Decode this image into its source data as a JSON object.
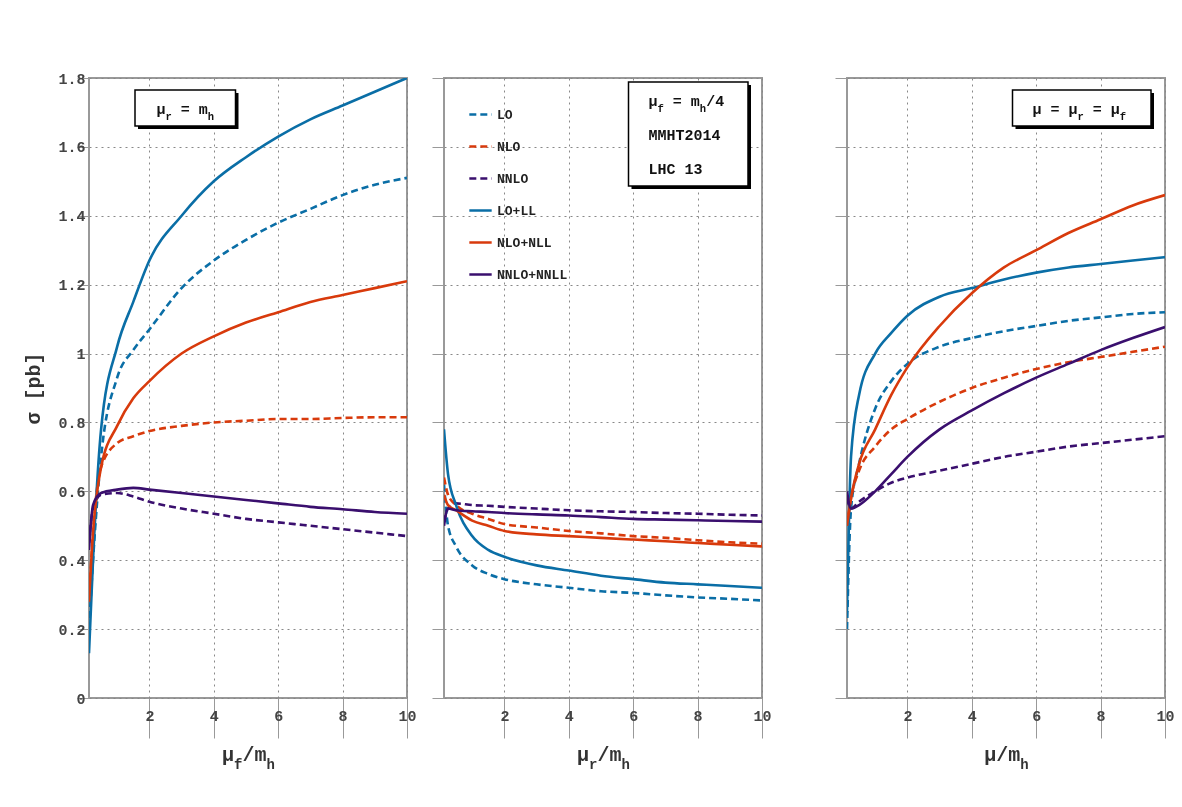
{
  "chart_data": [
    {
      "type": "line",
      "xlabel": "μ$_{f}$/m$_{h}$",
      "ylabel": "σ [pb]",
      "annotations": [
        "μ$_{r}$ = m$_{h}$"
      ],
      "x": [
        0.125,
        0.25,
        0.5,
        1,
        1.5,
        2,
        3,
        4,
        5,
        6,
        7,
        8,
        9,
        10
      ],
      "xlim": [
        0.125,
        10
      ],
      "xticks": [
        2,
        4,
        6,
        8,
        10
      ],
      "ylim": [
        0,
        1.8
      ],
      "yticks": [
        0,
        0.2,
        0.4,
        0.6,
        0.8,
        1,
        1.2,
        1.4,
        1.6,
        1.8
      ],
      "grid": true,
      "series": [
        {
          "color": "#0a6ea6",
          "line_style": "dashed",
          "values": [
            0.2,
            0.4,
            0.7,
            0.93,
            1.01,
            1.07,
            1.19,
            1.27,
            1.33,
            1.38,
            1.42,
            1.46,
            1.49,
            1.51
          ]
        },
        {
          "color": "#d83a0c",
          "line_style": "dashed",
          "values": [
            0.28,
            0.48,
            0.67,
            0.74,
            0.76,
            0.775,
            0.79,
            0.8,
            0.805,
            0.81,
            0.81,
            0.813,
            0.815,
            0.815
          ]
        },
        {
          "color": "#3a0f6e",
          "line_style": "dashed",
          "values": [
            0.45,
            0.55,
            0.59,
            0.595,
            0.585,
            0.57,
            0.55,
            0.535,
            0.52,
            0.51,
            0.5,
            0.49,
            0.48,
            0.47
          ]
        },
        {
          "color": "#0a6ea6",
          "line_style": "solid",
          "values": [
            0.13,
            0.4,
            0.78,
            1.02,
            1.15,
            1.27,
            1.4,
            1.5,
            1.57,
            1.63,
            1.68,
            1.72,
            1.76,
            1.8
          ]
        },
        {
          "color": "#d83a0c",
          "line_style": "solid",
          "values": [
            0.28,
            0.48,
            0.67,
            0.79,
            0.87,
            0.92,
            1.0,
            1.05,
            1.09,
            1.12,
            1.15,
            1.17,
            1.19,
            1.21
          ]
        },
        {
          "color": "#3a0f6e",
          "line_style": "solid",
          "values": [
            0.43,
            0.56,
            0.595,
            0.605,
            0.61,
            0.605,
            0.595,
            0.585,
            0.575,
            0.565,
            0.555,
            0.548,
            0.54,
            0.535
          ]
        }
      ]
    },
    {
      "type": "line",
      "xlabel": "μ$_{r}$/m$_{h}$",
      "annotations": [
        "μ$_{f}$ = m$_{h}$/4",
        "MMHT2014",
        "LHC 13"
      ],
      "x": [
        0.125,
        0.25,
        0.5,
        1,
        1.5,
        2,
        3,
        4,
        5,
        6,
        7,
        8,
        9,
        10
      ],
      "xlim": [
        0.125,
        10
      ],
      "xticks": [
        2,
        4,
        6,
        8,
        10
      ],
      "ylim": [
        0,
        1.8
      ],
      "yticks": [
        0,
        0.2,
        0.4,
        0.6,
        0.8,
        1,
        1.2,
        1.4,
        1.6,
        1.8
      ],
      "grid": true,
      "tick_labels": "x",
      "legend": "top left",
      "series": [
        {
          "name": "LO",
          "color": "#0a6ea6",
          "line_style": "dashed",
          "values": [
            0.62,
            0.5,
            0.44,
            0.385,
            0.36,
            0.345,
            0.33,
            0.32,
            0.31,
            0.305,
            0.298,
            0.292,
            0.288,
            0.283
          ]
        },
        {
          "name": "NLO",
          "color": "#d83a0c",
          "line_style": "dashed",
          "values": [
            0.64,
            0.59,
            0.56,
            0.535,
            0.52,
            0.505,
            0.495,
            0.485,
            0.478,
            0.47,
            0.465,
            0.458,
            0.452,
            0.448
          ]
        },
        {
          "name": "NNLO",
          "color": "#3a0f6e",
          "line_style": "dashed",
          "values": [
            0.51,
            0.55,
            0.565,
            0.56,
            0.558,
            0.555,
            0.55,
            0.545,
            0.542,
            0.54,
            0.537,
            0.535,
            0.532,
            0.53
          ]
        },
        {
          "name": "LO+LL",
          "color": "#0a6ea6",
          "line_style": "solid",
          "values": [
            0.78,
            0.65,
            0.56,
            0.47,
            0.43,
            0.41,
            0.385,
            0.37,
            0.355,
            0.345,
            0.335,
            0.33,
            0.325,
            0.32
          ]
        },
        {
          "name": "NLO+NLL",
          "color": "#d83a0c",
          "line_style": "solid",
          "values": [
            0.59,
            0.56,
            0.545,
            0.515,
            0.5,
            0.485,
            0.475,
            0.47,
            0.465,
            0.46,
            0.455,
            0.45,
            0.445,
            0.44
          ]
        },
        {
          "name": "NNLO+NNLL",
          "color": "#3a0f6e",
          "line_style": "solid",
          "values": [
            0.5,
            0.55,
            0.545,
            0.542,
            0.54,
            0.537,
            0.533,
            0.53,
            0.525,
            0.52,
            0.518,
            0.516,
            0.514,
            0.512
          ]
        }
      ]
    },
    {
      "type": "line",
      "xlabel": "μ/m$_{h}$",
      "annotations": [
        "μ = μ$_{r}$ = μ$_{f}$"
      ],
      "x": [
        0.125,
        0.25,
        0.5,
        1,
        1.5,
        2,
        3,
        4,
        5,
        6,
        7,
        8,
        9,
        10
      ],
      "xlim": [
        0.125,
        10
      ],
      "xticks": [
        2,
        4,
        6,
        8,
        10
      ],
      "ylim": [
        0,
        1.8
      ],
      "yticks": [
        0,
        0.2,
        0.4,
        0.6,
        0.8,
        1,
        1.2,
        1.4,
        1.6,
        1.8
      ],
      "grid": true,
      "tick_labels": "x",
      "series": [
        {
          "color": "#0a6ea6",
          "line_style": "dashed",
          "values": [
            0.2,
            0.55,
            0.68,
            0.84,
            0.92,
            0.97,
            1.02,
            1.045,
            1.065,
            1.08,
            1.095,
            1.105,
            1.115,
            1.12
          ]
        },
        {
          "color": "#d83a0c",
          "line_style": "dashed",
          "values": [
            0.5,
            0.58,
            0.66,
            0.73,
            0.78,
            0.81,
            0.86,
            0.9,
            0.93,
            0.955,
            0.975,
            0.99,
            1.005,
            1.02
          ]
        },
        {
          "color": "#3a0f6e",
          "line_style": "dashed",
          "values": [
            0.58,
            0.55,
            0.57,
            0.6,
            0.625,
            0.64,
            0.66,
            0.68,
            0.7,
            0.715,
            0.73,
            0.74,
            0.75,
            0.76
          ]
        },
        {
          "color": "#0a6ea6",
          "line_style": "solid",
          "values": [
            0.25,
            0.7,
            0.88,
            1.0,
            1.06,
            1.11,
            1.165,
            1.19,
            1.215,
            1.235,
            1.25,
            1.26,
            1.27,
            1.28
          ]
        },
        {
          "color": "#d83a0c",
          "line_style": "solid",
          "values": [
            0.5,
            0.58,
            0.68,
            0.78,
            0.88,
            0.96,
            1.08,
            1.175,
            1.25,
            1.3,
            1.35,
            1.39,
            1.43,
            1.46
          ]
        },
        {
          "color": "#3a0f6e",
          "line_style": "solid",
          "values": [
            0.6,
            0.55,
            0.56,
            0.6,
            0.65,
            0.7,
            0.78,
            0.835,
            0.885,
            0.93,
            0.97,
            1.01,
            1.045,
            1.077
          ]
        }
      ]
    }
  ]
}
